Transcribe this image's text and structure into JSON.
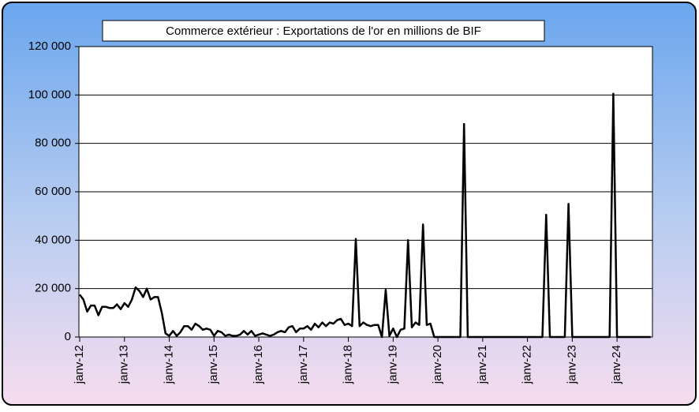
{
  "chart_data": {
    "type": "line",
    "title": "Commerce extérieur : Exportations de l'or en millions de BIF",
    "categories": [
      "janv-12",
      null,
      null,
      null,
      null,
      null,
      null,
      null,
      null,
      null,
      null,
      null,
      "janv-13",
      null,
      null,
      null,
      null,
      null,
      null,
      null,
      null,
      null,
      null,
      null,
      "janv-14",
      null,
      null,
      null,
      null,
      null,
      null,
      null,
      null,
      null,
      null,
      null,
      "janv-15",
      null,
      null,
      null,
      null,
      null,
      null,
      null,
      null,
      null,
      null,
      null,
      "janv-16",
      null,
      null,
      null,
      null,
      null,
      null,
      null,
      null,
      null,
      null,
      null,
      "janv-17",
      null,
      null,
      null,
      null,
      null,
      null,
      null,
      null,
      null,
      null,
      null,
      "janv-18",
      null,
      null,
      null,
      null,
      null,
      null,
      null,
      null,
      null,
      null,
      null,
      "janv-19",
      null,
      null,
      null,
      null,
      null,
      null,
      null,
      null,
      null,
      null,
      null,
      "janv-20",
      null,
      null,
      null,
      null,
      null,
      null,
      null,
      null,
      null,
      null,
      null,
      "janv-21",
      null,
      null,
      null,
      null,
      null,
      null,
      null,
      null,
      null,
      null,
      null,
      "janv-22",
      null,
      null,
      null,
      null,
      null,
      null,
      null,
      null,
      null,
      null,
      null,
      "janv-23",
      null,
      null,
      null,
      null,
      null,
      null,
      null,
      null,
      null,
      null,
      null,
      "janv-24",
      null,
      null,
      null,
      null,
      null,
      null,
      null,
      null,
      null
    ],
    "series": [
      {
        "color": "#000000",
        "values": [
          17500,
          15500,
          10500,
          13000,
          13000,
          9000,
          12500,
          12500,
          12000,
          12000,
          13500,
          11500,
          14000,
          12500,
          15500,
          20500,
          19000,
          16500,
          20000,
          15500,
          16500,
          16500,
          10000,
          1500,
          500,
          2500,
          500,
          2000,
          4500,
          4500,
          3000,
          5500,
          4500,
          3000,
          3500,
          3000,
          500,
          2500,
          2000,
          500,
          1000,
          500,
          500,
          1000,
          2500,
          1000,
          2500,
          500,
          1000,
          1500,
          1000,
          500,
          1000,
          2000,
          2500,
          2000,
          4000,
          4500,
          2000,
          3500,
          3500,
          4500,
          3000,
          5500,
          4000,
          6000,
          4500,
          6000,
          5500,
          7000,
          7500,
          5000,
          5500,
          4500,
          40500,
          4500,
          6000,
          5000,
          4500,
          5000,
          5000,
          0,
          19500,
          500,
          3500,
          0,
          3000,
          3500,
          40000,
          4000,
          6000,
          5000,
          46500,
          5000,
          5500,
          0,
          0,
          0,
          0,
          0,
          0,
          0,
          0,
          88000,
          0,
          0,
          0,
          0,
          0,
          0,
          0,
          0,
          0,
          0,
          0,
          0,
          0,
          0,
          0,
          0,
          0,
          0,
          0,
          0,
          0,
          50500,
          0,
          0,
          0,
          0,
          0,
          55000,
          0,
          0,
          0,
          0,
          0,
          0,
          0,
          0,
          0,
          0,
          0,
          100500,
          0,
          0,
          0,
          0,
          0,
          0,
          0,
          0,
          0,
          0
        ]
      }
    ],
    "ylim": [
      0,
      120000
    ],
    "yticks": [
      0,
      {
        "value": 20000,
        "label": "20 000"
      },
      {
        "value": 40000,
        "label": "40 000"
      },
      {
        "value": 60000,
        "label": "60 000"
      },
      {
        "value": 80000,
        "label": "80 000"
      },
      {
        "value": 100000,
        "label": "100 000"
      },
      {
        "value": 120000,
        "label": "120 000"
      }
    ],
    "grid": true
  }
}
